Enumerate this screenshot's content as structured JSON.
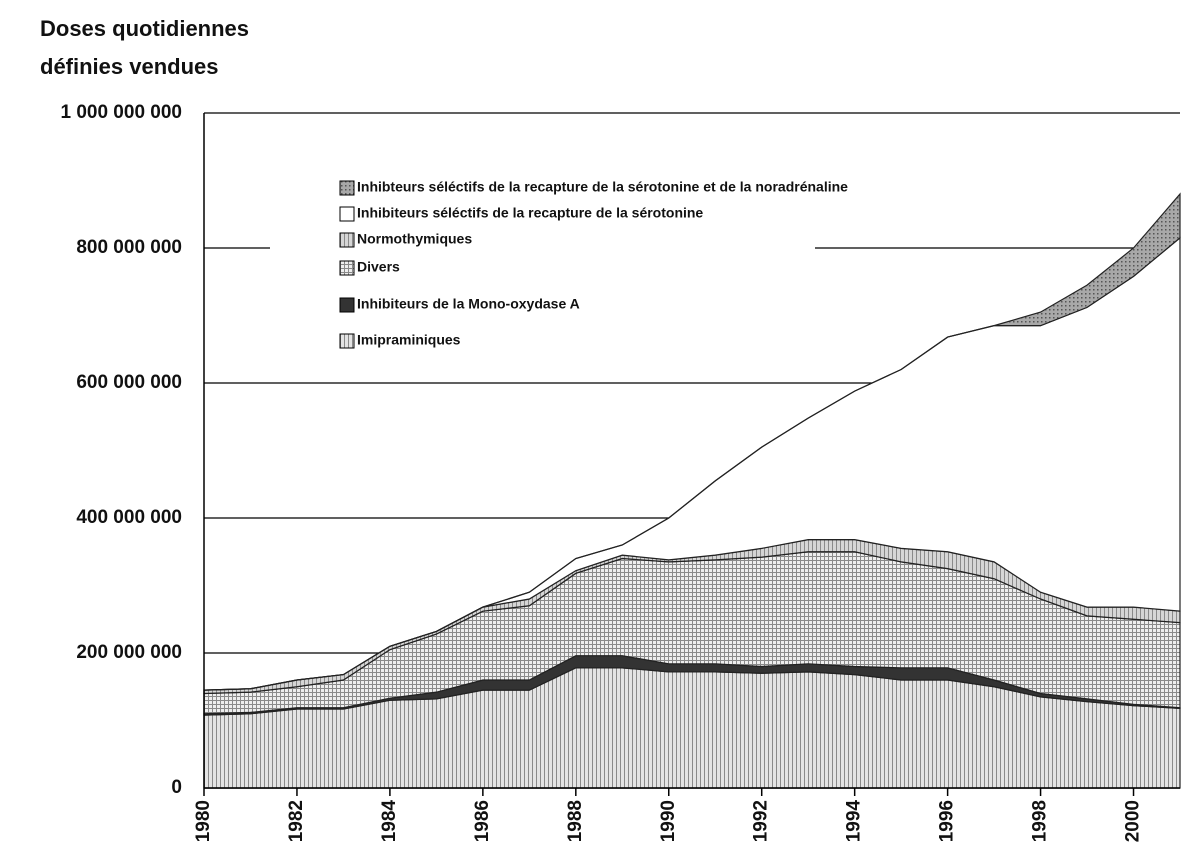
{
  "chart_data": {
    "type": "area",
    "title": [
      "Doses quotidiennes",
      "définies vendues"
    ],
    "x": [
      1980,
      1981,
      1982,
      1983,
      1984,
      1985,
      1986,
      1987,
      1988,
      1989,
      1990,
      1991,
      1992,
      1993,
      1994,
      1995,
      1996,
      1997,
      1998,
      1999,
      2000,
      2001
    ],
    "xlim": [
      1980,
      2001
    ],
    "xticks": [
      1980,
      1982,
      1984,
      1986,
      1988,
      1990,
      1992,
      1994,
      1996,
      1998,
      2000
    ],
    "ylim": [
      0,
      1000000000
    ],
    "yticks": [
      0,
      {
        "value": 200000000,
        "label": "200 000 000"
      },
      {
        "value": 400000000,
        "label": "400 000 000"
      },
      {
        "value": 600000000,
        "label": "600 000 000"
      },
      {
        "value": 800000000,
        "label": "800 000 000"
      },
      {
        "value": 1000000000,
        "label": "1 000 000 000"
      }
    ],
    "grid": true,
    "stacked": true,
    "series": [
      {
        "name": "Imipraminiques",
        "color": "#e4e4e4",
        "values": [
          108000000,
          110000000,
          117000000,
          117000000,
          130000000,
          132000000,
          145000000,
          145000000,
          178000000,
          178000000,
          172000000,
          172000000,
          170000000,
          172000000,
          168000000,
          160000000,
          160000000,
          150000000,
          135000000,
          128000000,
          122000000,
          118000000
        ]
      },
      {
        "name": "Inhibiteurs de la Mono-oxydase A",
        "color": "#333333",
        "values": [
          2000000,
          2000000,
          2000000,
          2000000,
          3000000,
          10000000,
          15000000,
          15000000,
          18000000,
          18000000,
          12000000,
          12000000,
          10000000,
          12000000,
          12000000,
          18000000,
          18000000,
          10000000,
          5000000,
          4000000,
          2000000,
          1000000
        ]
      },
      {
        "name": "Divers",
        "color": "#eeeeee",
        "values": [
          30000000,
          30000000,
          31000000,
          41000000,
          72000000,
          86000000,
          102000000,
          110000000,
          122000000,
          144000000,
          151000000,
          154000000,
          162000000,
          166000000,
          170000000,
          157000000,
          147000000,
          150000000,
          140000000,
          123000000,
          126000000,
          126000000
        ]
      },
      {
        "name": "Normothymiques",
        "color": "#d6d6d6",
        "values": [
          5000000,
          5000000,
          10000000,
          8000000,
          5000000,
          4000000,
          6000000,
          10000000,
          4000000,
          5000000,
          3000000,
          7000000,
          13000000,
          18000000,
          18000000,
          20000000,
          25000000,
          25000000,
          10000000,
          13000000,
          18000000,
          17000000
        ]
      },
      {
        "name": "Inhibiteurs séléctifs de la recapture de la sérotonine",
        "color": "#ffffff",
        "values": [
          0,
          0,
          0,
          0,
          0,
          0,
          0,
          10000000,
          18000000,
          15000000,
          62000000,
          110000000,
          150000000,
          180000000,
          220000000,
          265000000,
          318000000,
          350000000,
          395000000,
          444000000,
          490000000,
          553000000
        ]
      },
      {
        "name": "Inhibteurs séléctifs de la recapture de la sérotonine et de la noradrénaline",
        "color": "#a8a8a8",
        "values": [
          0,
          0,
          0,
          0,
          0,
          0,
          0,
          0,
          0,
          0,
          0,
          0,
          0,
          0,
          0,
          0,
          0,
          0,
          20000000,
          33000000,
          42000000,
          65000000
        ]
      }
    ]
  }
}
